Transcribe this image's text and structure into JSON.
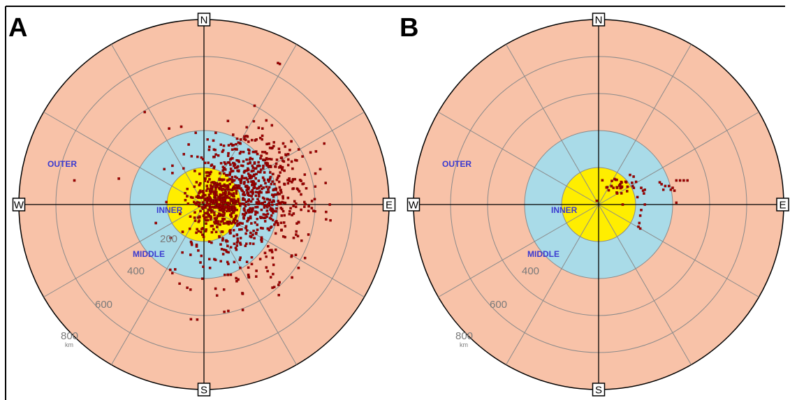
{
  "chart_data": [
    {
      "type": "scatter",
      "panel_label": "A",
      "projection": "polar distance map",
      "directions": {
        "north": "N",
        "south": "S",
        "east": "E",
        "west": "W"
      },
      "zones": [
        {
          "name": "INNER",
          "outer_radius_km": 200,
          "color": "#ffee00"
        },
        {
          "name": "MIDDLE",
          "outer_radius_km": 400,
          "color": "#a9dbe8"
        },
        {
          "name": "OUTER",
          "outer_radius_km": 1000,
          "color": "#f8c2a8"
        }
      ],
      "rings_km": [
        200,
        400,
        600,
        800,
        1000
      ],
      "ring_labels": [
        "200",
        "400",
        "600",
        "800"
      ],
      "unit": "km",
      "spokes_deg": [
        0,
        30,
        60,
        90,
        120,
        150,
        180,
        210,
        240,
        270,
        300,
        330
      ],
      "point_color": "#a00000",
      "clusters": [
        {
          "count": 330,
          "center_km": [
            80,
            5
          ],
          "spread_km": [
            75,
            75
          ]
        },
        {
          "count": 380,
          "center_km": [
            300,
            80
          ],
          "spread_km": [
            140,
            125
          ]
        },
        {
          "count": 150,
          "center_km": [
            200,
            240
          ],
          "spread_km": [
            130,
            110
          ]
        },
        {
          "count": 180,
          "center_km": [
            260,
            -120
          ],
          "spread_km": [
            170,
            150
          ]
        },
        {
          "count": 40,
          "center_km": [
            120,
            -350
          ],
          "spread_km": [
            140,
            120
          ]
        }
      ],
      "points_km": [
        [
          410,
          760
        ],
        [
          400,
          765
        ],
        [
          -320,
          500
        ],
        [
          -460,
          140
        ],
        [
          -700,
          130
        ],
        [
          650,
          330
        ],
        [
          680,
          0
        ],
        [
          660,
          -40
        ],
        [
          660,
          -80
        ],
        [
          -260,
          -100
        ],
        [
          -180,
          -180
        ],
        [
          -90,
          -450
        ],
        [
          -70,
          -620
        ],
        [
          110,
          -580
        ],
        [
          400,
          -110
        ],
        [
          130,
          -380
        ],
        [
          240,
          -380
        ],
        [
          -170,
          210
        ],
        [
          -170,
          170
        ],
        [
          230,
          370
        ]
      ]
    },
    {
      "type": "scatter",
      "panel_label": "B",
      "projection": "polar distance map",
      "directions": {
        "north": "N",
        "south": "S",
        "east": "E",
        "west": "W"
      },
      "zones": [
        {
          "name": "INNER",
          "outer_radius_km": 200,
          "color": "#ffee00"
        },
        {
          "name": "MIDDLE",
          "outer_radius_km": 400,
          "color": "#a9dbe8"
        },
        {
          "name": "OUTER",
          "outer_radius_km": 1000,
          "color": "#f8c2a8"
        }
      ],
      "rings_km": [
        200,
        400,
        600,
        800,
        1000
      ],
      "ring_labels": [
        "400",
        "600",
        "800"
      ],
      "unit": "km",
      "spokes_deg": [
        0,
        30,
        60,
        90,
        120,
        150,
        180,
        210,
        240,
        270,
        300,
        330
      ],
      "point_color": "#a00000",
      "clusters": [
        {
          "count": 28,
          "center_km": [
            110,
            110
          ],
          "spread_km": [
            40,
            25
          ]
        }
      ],
      "points_km": [
        [
          170,
          160
        ],
        [
          150,
          120
        ],
        [
          190,
          90
        ],
        [
          210,
          40
        ],
        [
          230,
          90
        ],
        [
          250,
          80
        ],
        [
          245,
          60
        ],
        [
          240,
          75
        ],
        [
          250,
          0
        ],
        [
          230,
          -30
        ],
        [
          225,
          -60
        ],
        [
          220,
          -100
        ],
        [
          225,
          -130
        ],
        [
          215,
          -120
        ],
        [
          330,
          120
        ],
        [
          340,
          110
        ],
        [
          360,
          100
        ],
        [
          350,
          80
        ],
        [
          390,
          80
        ],
        [
          380,
          100
        ],
        [
          420,
          130
        ],
        [
          440,
          130
        ],
        [
          460,
          130
        ],
        [
          480,
          130
        ],
        [
          400,
          90
        ],
        [
          410,
          75
        ],
        [
          420,
          10
        ],
        [
          -10,
          20
        ],
        [
          130,
          0
        ],
        [
          70,
          100
        ],
        [
          80,
          90
        ],
        [
          100,
          60
        ]
      ]
    }
  ]
}
